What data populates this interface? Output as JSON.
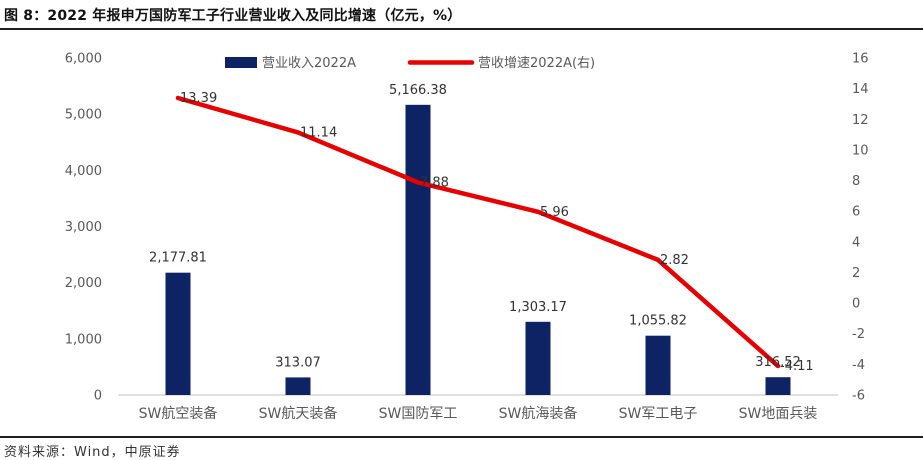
{
  "title": "图 8：2022 年报申万国防军工子行业营业收入及同比增速（亿元，%）",
  "source": "资料来源：Wind，中原证券",
  "colors": {
    "bar": "#0d2363",
    "line": "#e60000",
    "axis": "#bfbfbf",
    "text": "#595959"
  },
  "chart_data": {
    "type": "bar+line",
    "categories": [
      "SW航空装备",
      "SW航天装备",
      "SW国防军工",
      "SW航海装备",
      "SW军工电子",
      "SW地面兵装"
    ],
    "series": [
      {
        "name": "营业收入2022A",
        "type": "bar",
        "axis": "left",
        "values": [
          2177.81,
          313.07,
          5166.38,
          1303.17,
          1055.82,
          316.52
        ],
        "labels": [
          "2,177.81",
          "313.07",
          "5,166.38",
          "1,303.17",
          "1,055.82",
          "316.52"
        ]
      },
      {
        "name": "营收增速2022A(右)",
        "type": "line",
        "axis": "right",
        "values": [
          13.39,
          11.14,
          7.88,
          5.96,
          2.82,
          -4.11
        ],
        "labels": [
          "13.39",
          "11.14",
          "7.88",
          "5.96",
          "2.82",
          "-4.11"
        ]
      }
    ],
    "y_left": {
      "min": 0,
      "max": 6000,
      "step": 1000,
      "tick_labels": [
        "0",
        "1,000",
        "2,000",
        "3,000",
        "4,000",
        "5,000",
        "6,000"
      ]
    },
    "y_right": {
      "min": -6,
      "max": 16,
      "step": 2,
      "tick_labels": [
        "-6",
        "-4",
        "-2",
        "0",
        "2",
        "4",
        "6",
        "8",
        "10",
        "12",
        "14",
        "16"
      ]
    },
    "legend_position": "top",
    "grid": false
  }
}
